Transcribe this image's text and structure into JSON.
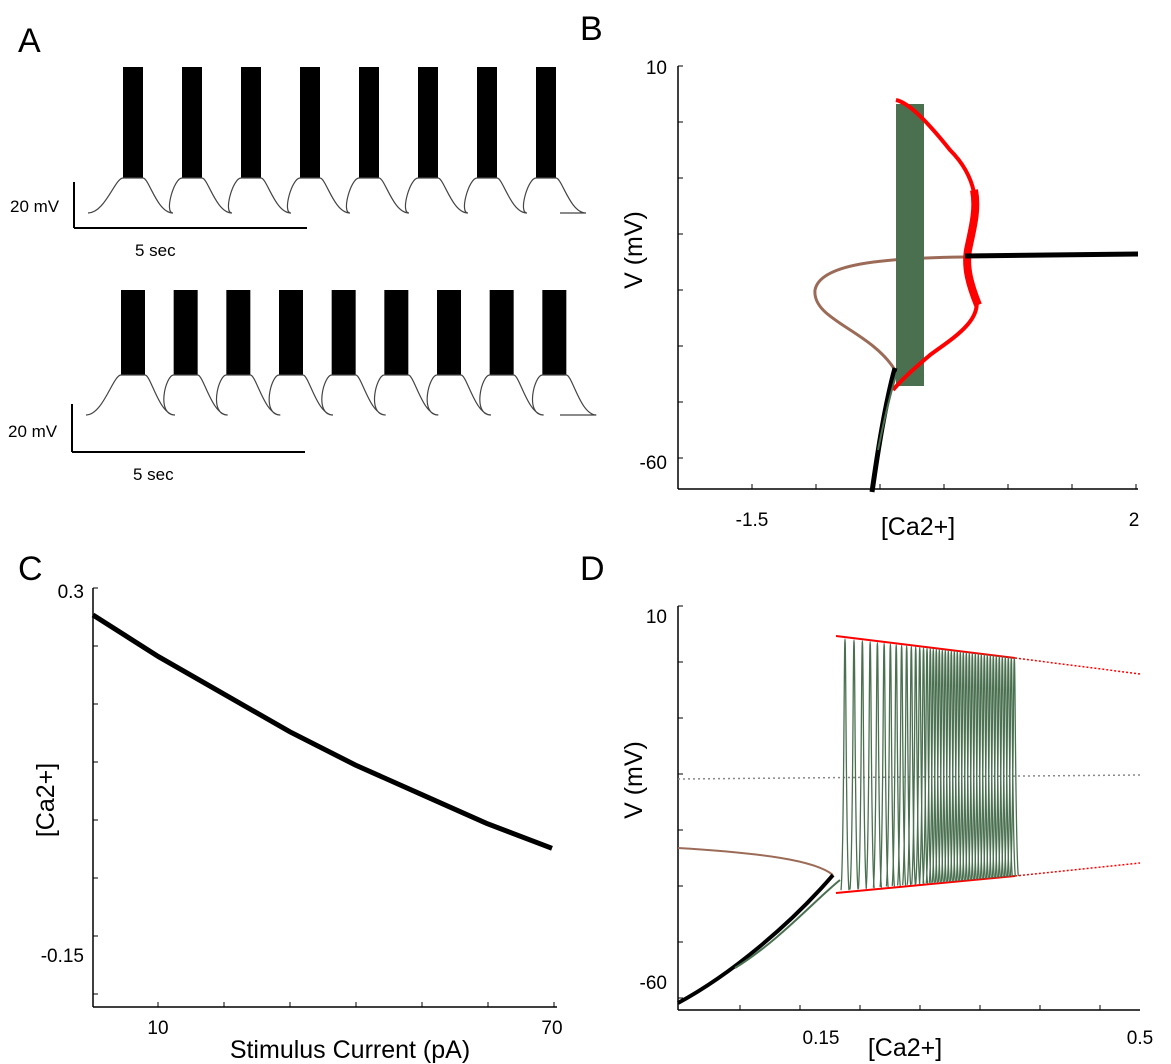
{
  "panels": {
    "A": {
      "label": "A"
    },
    "B": {
      "label": "B"
    },
    "C": {
      "label": "C"
    },
    "D": {
      "label": "D"
    }
  },
  "chart_data": [
    {
      "panel": "A",
      "type": "line",
      "description_of_traces": "voltage traces, bursting",
      "top_trace": {
        "bursts": 8,
        "scalebar_v": "20 mV",
        "scalebar_t": "5 sec"
      },
      "bottom_trace": {
        "bursts": 9,
        "scalebar_v": "20 mV",
        "scalebar_t": "5 sec"
      }
    },
    {
      "panel": "B",
      "type": "line",
      "xlabel": "[Ca2+]",
      "ylabel": "V (mV)",
      "xlim": [
        -1.5,
        2
      ],
      "ylim": [
        -60,
        10
      ],
      "xticks": [
        "-1.5",
        "2"
      ],
      "yticks": [
        "10",
        "-60"
      ],
      "colors": {
        "branch": "#9b6b58",
        "cycle": "#ff0000",
        "trajectory": "#4a7050",
        "stable": "#000000"
      }
    },
    {
      "panel": "C",
      "type": "line",
      "xlabel": "Stimulus Current (pA)",
      "ylabel": "[Ca2+]",
      "xlim": [
        0,
        70
      ],
      "ylim": [
        -0.15,
        0.3
      ],
      "xticks": [
        "10",
        "70"
      ],
      "yticks": [
        "0.3",
        "-0.15"
      ],
      "x": [
        0,
        10,
        20,
        30,
        40,
        50,
        60,
        70
      ],
      "y": [
        0.27,
        0.22,
        0.175,
        0.13,
        0.09,
        0.055,
        0.02,
        -0.01
      ]
    },
    {
      "panel": "D",
      "type": "line",
      "xlabel": "[Ca2+]",
      "ylabel": "V (mV)",
      "xlim": [
        0,
        0.5
      ],
      "ylim": [
        -60,
        10
      ],
      "xticks": [
        "0.15",
        "0.5"
      ],
      "yticks": [
        "10",
        "-60"
      ],
      "colors": {
        "branch": "#9b6b58",
        "cycle": "#ff0000",
        "trajectory": "#4a7050",
        "stable": "#000000",
        "unstable": "#888888"
      }
    }
  ]
}
